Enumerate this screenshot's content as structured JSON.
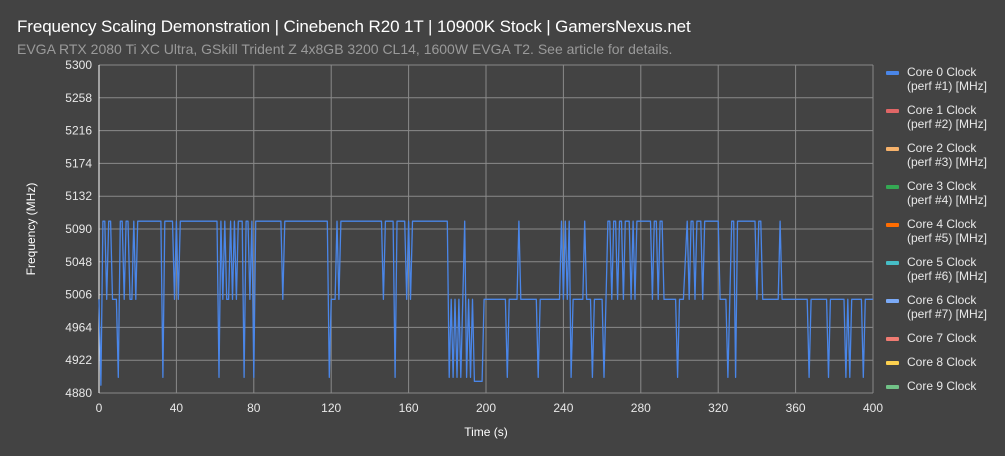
{
  "header": {
    "title": "Frequency Scaling Demonstration | Cinebench R20 1T | 10900K Stock | GamersNexus.net",
    "subtitle": "EVGA RTX 2080 Ti XC Ultra, GSkill Trident Z 4x8GB 3200 CL14, 1600W EVGA T2. See article for details."
  },
  "legend": [
    {
      "line1": "Core 0 Clock",
      "line2": "(perf #1) [MHz]",
      "color": "#4a86e8"
    },
    {
      "line1": "Core 1 Clock",
      "line2": "(perf #2) [MHz]",
      "color": "#e06666"
    },
    {
      "line1": "Core 2 Clock",
      "line2": "(perf #3) [MHz]",
      "color": "#f6b26b"
    },
    {
      "line1": "Core 3 Clock",
      "line2": "(perf #4) [MHz]",
      "color": "#34a853"
    },
    {
      "line1": "Core 4 Clock",
      "line2": "(perf #5) [MHz]",
      "color": "#ff6d01"
    },
    {
      "line1": "Core 5 Clock",
      "line2": "(perf #6) [MHz]",
      "color": "#46bdc6"
    },
    {
      "line1": "Core 6 Clock",
      "line2": "(perf #7) [MHz]",
      "color": "#7baaf7"
    },
    {
      "line1": "Core 7 Clock",
      "line2": "",
      "color": "#f07b72"
    },
    {
      "line1": "Core 8 Clock",
      "line2": "",
      "color": "#fcd04f"
    },
    {
      "line1": "Core 9 Clock",
      "line2": "",
      "color": "#71c287"
    }
  ],
  "chart_data": {
    "type": "line",
    "title": "Frequency Scaling Demonstration | Cinebench R20 1T | 10900K Stock | GamersNexus.net",
    "subtitle": "EVGA RTX 2080 Ti XC Ultra, GSkill Trident Z 4x8GB 3200 CL14, 1600W EVGA T2. See article for details.",
    "xlabel": "Time (s)",
    "ylabel": "Frequency (MHz)",
    "xlim": [
      0,
      400
    ],
    "ylim": [
      4880,
      5300
    ],
    "xticks": [
      0,
      40,
      80,
      120,
      160,
      200,
      240,
      280,
      320,
      360,
      400
    ],
    "yticks": [
      4880,
      4922,
      4964,
      5006,
      5048,
      5090,
      5132,
      5174,
      5216,
      5258,
      5300
    ],
    "grid": true,
    "legend_position": "right",
    "series": [
      {
        "name": "Core 0 Clock (perf #1) [MHz]",
        "color": "#4a86e8",
        "points": [
          [
            0,
            5000
          ],
          [
            1,
            4890
          ],
          [
            2,
            5100
          ],
          [
            3,
            5100
          ],
          [
            4,
            5000
          ],
          [
            5,
            5100
          ],
          [
            6,
            5100
          ],
          [
            7,
            5000
          ],
          [
            8,
            5000
          ],
          [
            9,
            5000
          ],
          [
            10,
            4900
          ],
          [
            11,
            5100
          ],
          [
            12,
            5100
          ],
          [
            13,
            5000
          ],
          [
            14,
            5100
          ],
          [
            15,
            5100
          ],
          [
            16,
            5000
          ],
          [
            17,
            5000
          ],
          [
            18,
            5100
          ],
          [
            19,
            5000
          ],
          [
            20,
            5100
          ],
          [
            22,
            5100
          ],
          [
            24,
            5100
          ],
          [
            26,
            5100
          ],
          [
            28,
            5100
          ],
          [
            30,
            5100
          ],
          [
            31,
            5100
          ],
          [
            32,
            5100
          ],
          [
            33,
            4900
          ],
          [
            34,
            5100
          ],
          [
            36,
            5100
          ],
          [
            38,
            5100
          ],
          [
            39,
            5000
          ],
          [
            40,
            5100
          ],
          [
            41,
            5000
          ],
          [
            42,
            5100
          ],
          [
            44,
            5100
          ],
          [
            48,
            5100
          ],
          [
            52,
            5100
          ],
          [
            56,
            5100
          ],
          [
            60,
            5100
          ],
          [
            61,
            5100
          ],
          [
            62,
            4900
          ],
          [
            63,
            5100
          ],
          [
            64,
            5000
          ],
          [
            65,
            5100
          ],
          [
            66,
            5000
          ],
          [
            67,
            5000
          ],
          [
            68,
            5100
          ],
          [
            69,
            5000
          ],
          [
            70,
            5100
          ],
          [
            71,
            5000
          ],
          [
            72,
            5100
          ],
          [
            74,
            5100
          ],
          [
            75,
            4900
          ],
          [
            76,
            5100
          ],
          [
            77,
            5100
          ],
          [
            78,
            5000
          ],
          [
            79,
            5100
          ],
          [
            80,
            4900
          ],
          [
            81,
            5100
          ],
          [
            84,
            5100
          ],
          [
            88,
            5100
          ],
          [
            92,
            5100
          ],
          [
            94,
            5100
          ],
          [
            95,
            5000
          ],
          [
            96,
            5100
          ],
          [
            100,
            5100
          ],
          [
            104,
            5100
          ],
          [
            108,
            5100
          ],
          [
            112,
            5100
          ],
          [
            116,
            5100
          ],
          [
            118,
            5100
          ],
          [
            119,
            4900
          ],
          [
            120,
            5000
          ],
          [
            122,
            5000
          ],
          [
            123,
            5100
          ],
          [
            124,
            5000
          ],
          [
            125,
            5100
          ],
          [
            128,
            5100
          ],
          [
            132,
            5100
          ],
          [
            136,
            5100
          ],
          [
            140,
            5100
          ],
          [
            144,
            5100
          ],
          [
            146,
            5100
          ],
          [
            147,
            5000
          ],
          [
            148,
            5100
          ],
          [
            151,
            5100
          ],
          [
            152,
            5100
          ],
          [
            153,
            4900
          ],
          [
            154,
            5100
          ],
          [
            157,
            5100
          ],
          [
            158,
            5100
          ],
          [
            159,
            5000
          ],
          [
            160,
            5100
          ],
          [
            161,
            5000
          ],
          [
            162,
            5100
          ],
          [
            163,
            5100
          ],
          [
            164,
            5100
          ],
          [
            165,
            5100
          ],
          [
            166,
            5100
          ],
          [
            167,
            5100
          ],
          [
            168,
            5100
          ],
          [
            169,
            5100
          ],
          [
            170,
            5100
          ],
          [
            171,
            5100
          ],
          [
            172,
            5100
          ],
          [
            173,
            5100
          ],
          [
            174,
            5100
          ],
          [
            175,
            5100
          ],
          [
            176,
            5100
          ],
          [
            177,
            5100
          ],
          [
            178,
            5100
          ],
          [
            180,
            5100
          ],
          [
            181,
            4900
          ],
          [
            182,
            5000
          ],
          [
            183,
            4900
          ],
          [
            184,
            5000
          ],
          [
            185,
            4900
          ],
          [
            186,
            5000
          ],
          [
            187,
            4900
          ],
          [
            188,
            5000
          ],
          [
            189,
            5100
          ],
          [
            190,
            4900
          ],
          [
            191,
            5000
          ],
          [
            192,
            4900
          ],
          [
            193,
            5000
          ],
          [
            194,
            4895
          ],
          [
            195,
            4895
          ],
          [
            196,
            4895
          ],
          [
            197,
            4895
          ],
          [
            198,
            4895
          ],
          [
            199,
            5000
          ],
          [
            200,
            5000
          ],
          [
            204,
            5000
          ],
          [
            208,
            5000
          ],
          [
            210,
            5000
          ],
          [
            211,
            4900
          ],
          [
            212,
            5000
          ],
          [
            214,
            5000
          ],
          [
            216,
            5000
          ],
          [
            217,
            5100
          ],
          [
            218,
            5000
          ],
          [
            220,
            5000
          ],
          [
            222,
            5000
          ],
          [
            224,
            5000
          ],
          [
            226,
            5000
          ],
          [
            227,
            4900
          ],
          [
            228,
            5000
          ],
          [
            232,
            5000
          ],
          [
            236,
            5000
          ],
          [
            238,
            5000
          ],
          [
            239,
            5100
          ],
          [
            240,
            5000
          ],
          [
            241,
            5100
          ],
          [
            242,
            5000
          ],
          [
            243,
            5100
          ],
          [
            244,
            4900
          ],
          [
            245,
            5000
          ],
          [
            246,
            5000
          ],
          [
            248,
            5000
          ],
          [
            250,
            5000
          ],
          [
            251,
            5100
          ],
          [
            252,
            5000
          ],
          [
            253,
            5000
          ],
          [
            254,
            5000
          ],
          [
            255,
            4900
          ],
          [
            256,
            5000
          ],
          [
            258,
            5000
          ],
          [
            260,
            5000
          ],
          [
            261,
            4900
          ],
          [
            262,
            5000
          ],
          [
            263,
            5100
          ],
          [
            264,
            5100
          ],
          [
            265,
            5000
          ],
          [
            266,
            5100
          ],
          [
            267,
            5100
          ],
          [
            268,
            5000
          ],
          [
            269,
            5100
          ],
          [
            270,
            5100
          ],
          [
            271,
            5000
          ],
          [
            272,
            5100
          ],
          [
            273,
            5100
          ],
          [
            274,
            5100
          ],
          [
            275,
            5000
          ],
          [
            276,
            5100
          ],
          [
            277,
            5000
          ],
          [
            278,
            5100
          ],
          [
            279,
            5100
          ],
          [
            280,
            5100
          ],
          [
            282,
            5100
          ],
          [
            284,
            5100
          ],
          [
            285,
            5100
          ],
          [
            286,
            5000
          ],
          [
            287,
            5100
          ],
          [
            288,
            5100
          ],
          [
            289,
            5000
          ],
          [
            290,
            5100
          ],
          [
            291,
            5100
          ],
          [
            292,
            5000
          ],
          [
            293,
            5000
          ],
          [
            294,
            5000
          ],
          [
            296,
            5000
          ],
          [
            297,
            5000
          ],
          [
            298,
            5000
          ],
          [
            299,
            4900
          ],
          [
            300,
            5000
          ],
          [
            302,
            5000
          ],
          [
            304,
            5100
          ],
          [
            305,
            5000
          ],
          [
            306,
            5100
          ],
          [
            307,
            5100
          ],
          [
            308,
            5000
          ],
          [
            309,
            5100
          ],
          [
            311,
            5100
          ],
          [
            312,
            5000
          ],
          [
            313,
            5100
          ],
          [
            314,
            5100
          ],
          [
            316,
            5100
          ],
          [
            318,
            5100
          ],
          [
            319,
            5100
          ],
          [
            320,
            5100
          ],
          [
            321,
            5000
          ],
          [
            322,
            5000
          ],
          [
            323,
            5000
          ],
          [
            324,
            5000
          ],
          [
            325,
            4900
          ],
          [
            326,
            5000
          ],
          [
            327,
            5100
          ],
          [
            328,
            5100
          ],
          [
            329,
            4900
          ],
          [
            330,
            5100
          ],
          [
            332,
            5100
          ],
          [
            334,
            5100
          ],
          [
            336,
            5100
          ],
          [
            338,
            5100
          ],
          [
            339,
            5100
          ],
          [
            340,
            5000
          ],
          [
            341,
            5100
          ],
          [
            342,
            5100
          ],
          [
            343,
            5000
          ],
          [
            344,
            5000
          ],
          [
            346,
            5000
          ],
          [
            348,
            5000
          ],
          [
            350,
            5000
          ],
          [
            351,
            5000
          ],
          [
            352,
            5100
          ],
          [
            353,
            5000
          ],
          [
            354,
            5000
          ],
          [
            356,
            5000
          ],
          [
            358,
            5000
          ],
          [
            360,
            5000
          ],
          [
            362,
            5000
          ],
          [
            364,
            5000
          ],
          [
            365,
            5000
          ],
          [
            366,
            5000
          ],
          [
            367,
            4900
          ],
          [
            368,
            5000
          ],
          [
            370,
            5000
          ],
          [
            372,
            5000
          ],
          [
            374,
            5000
          ],
          [
            375,
            5000
          ],
          [
            376,
            5000
          ],
          [
            377,
            4900
          ],
          [
            378,
            5000
          ],
          [
            380,
            5000
          ],
          [
            382,
            5000
          ],
          [
            384,
            5000
          ],
          [
            385,
            5000
          ],
          [
            386,
            4900
          ],
          [
            387,
            5000
          ],
          [
            388,
            4900
          ],
          [
            389,
            5000
          ],
          [
            390,
            5000
          ],
          [
            392,
            5000
          ],
          [
            393,
            5000
          ],
          [
            394,
            5000
          ],
          [
            395,
            4900
          ],
          [
            396,
            5000
          ],
          [
            398,
            5000
          ],
          [
            400,
            5000
          ]
        ]
      },
      {
        "name": "Core 1 Clock (perf #2) [MHz]",
        "color": "#e06666",
        "points": []
      },
      {
        "name": "Core 2 Clock (perf #3) [MHz]",
        "color": "#f6b26b",
        "points": []
      },
      {
        "name": "Core 3 Clock (perf #4) [MHz]",
        "color": "#34a853",
        "points": []
      },
      {
        "name": "Core 4 Clock (perf #5) [MHz]",
        "color": "#ff6d01",
        "points": []
      },
      {
        "name": "Core 5 Clock (perf #6) [MHz]",
        "color": "#46bdc6",
        "points": []
      },
      {
        "name": "Core 6 Clock (perf #7) [MHz]",
        "color": "#7baaf7",
        "points": []
      },
      {
        "name": "Core 7 Clock",
        "color": "#f07b72",
        "points": []
      },
      {
        "name": "Core 8 Clock",
        "color": "#fcd04f",
        "points": []
      },
      {
        "name": "Core 9 Clock",
        "color": "#71c287",
        "points": []
      }
    ]
  }
}
